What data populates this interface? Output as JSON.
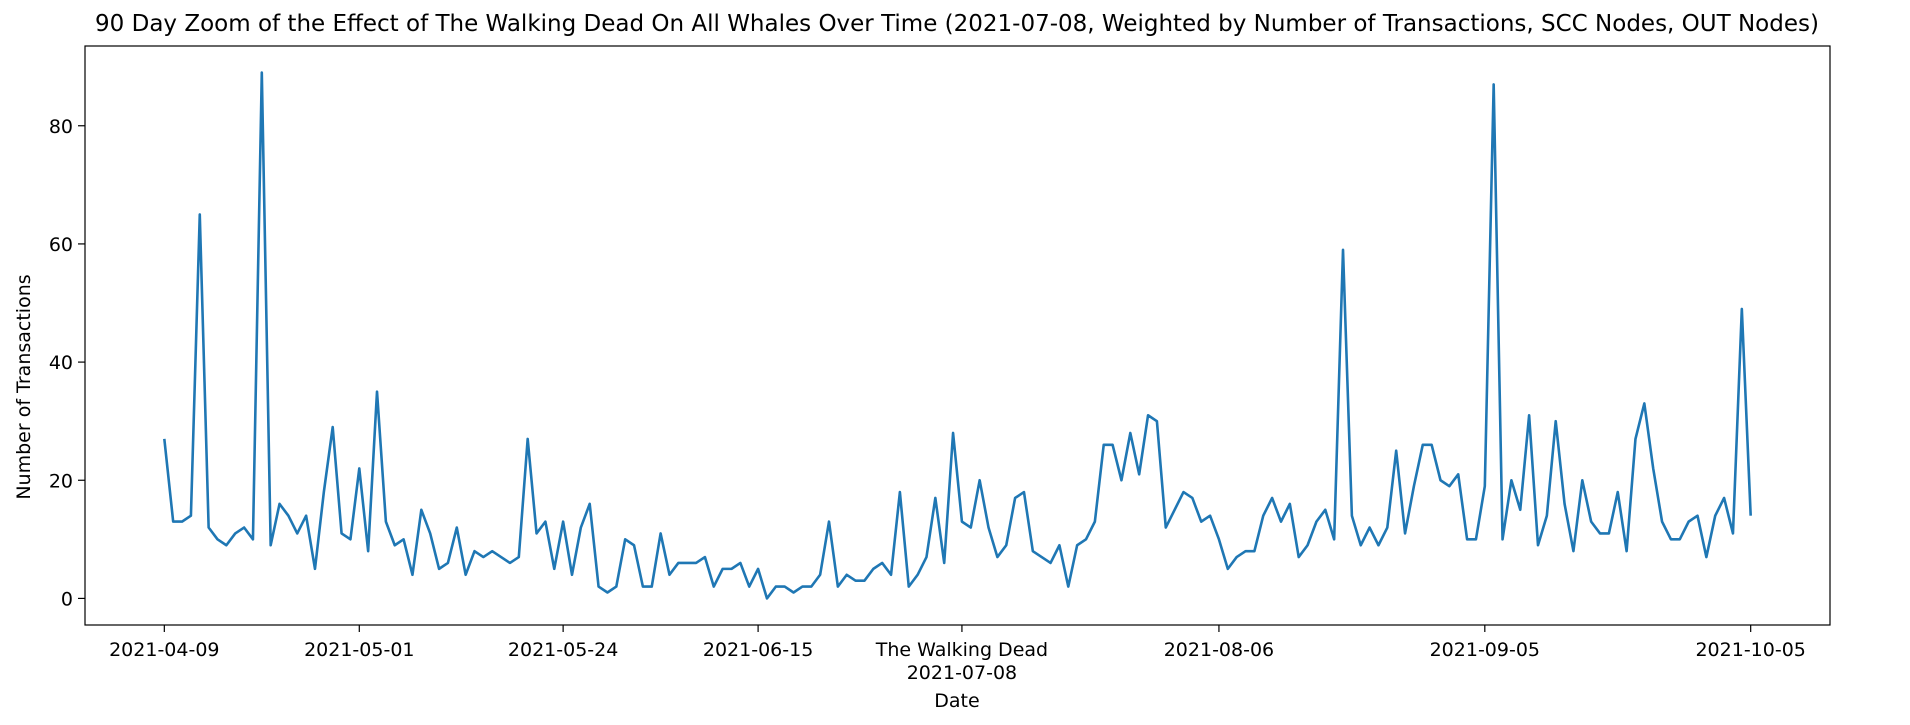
{
  "chart_data": {
    "type": "line",
    "title": "90 Day Zoom of the Effect of The Walking Dead On All Whales Over Time (2021-07-08, Weighted by Number of Transactions, SCC Nodes, OUT Nodes)",
    "xlabel": "Date",
    "ylabel": "Number of Transactions",
    "x_start": "2021-04-09",
    "x_end": "2021-10-05",
    "ylim": [
      -4.5,
      93.5
    ],
    "yticks": [
      0,
      20,
      40,
      60,
      80
    ],
    "xticks": [
      {
        "date": "2021-04-09",
        "label": "2021-04-09"
      },
      {
        "date": "2021-05-01",
        "label": "2021-05-01"
      },
      {
        "date": "2021-05-24",
        "label": "2021-05-24"
      },
      {
        "date": "2021-06-15",
        "label": "2021-06-15"
      },
      {
        "date": "2021-07-08",
        "label": "The Walking Dead",
        "label2": "2021-07-08"
      },
      {
        "date": "2021-08-06",
        "label": "2021-08-06"
      },
      {
        "date": "2021-09-05",
        "label": "2021-09-05"
      },
      {
        "date": "2021-10-05",
        "label": "2021-10-05"
      }
    ],
    "grid": false,
    "line_color": "#1f77b4",
    "series": [
      {
        "values": [
          27,
          13,
          13,
          14,
          65,
          12,
          10,
          9,
          11,
          12,
          10,
          89,
          9,
          16,
          14,
          11,
          14,
          5,
          18,
          29,
          11,
          10,
          22,
          8,
          35,
          13,
          9,
          10,
          4,
          15,
          11,
          5,
          6,
          12,
          4,
          8,
          7,
          8,
          7,
          6,
          7,
          27,
          11,
          13,
          5,
          13,
          4,
          12,
          16,
          2,
          1,
          2,
          10,
          9,
          2,
          2,
          11,
          4,
          6,
          6,
          6,
          7,
          2,
          5,
          5,
          6,
          2,
          5,
          0,
          2,
          2,
          1,
          2,
          2,
          4,
          13,
          2,
          4,
          3,
          3,
          5,
          6,
          4,
          18,
          2,
          4,
          7,
          17,
          6,
          28,
          13,
          12,
          20,
          12,
          7,
          9,
          17,
          18,
          8,
          7,
          6,
          9,
          2,
          9,
          10,
          13,
          26,
          26,
          20,
          28,
          21,
          31,
          30,
          12,
          15,
          18,
          17,
          13,
          14,
          10,
          5,
          7,
          8,
          8,
          14,
          17,
          13,
          16,
          7,
          9,
          13,
          15,
          10,
          59,
          14,
          9,
          12,
          9,
          12,
          25,
          11,
          19,
          26,
          26,
          20,
          19,
          21,
          10,
          10,
          19,
          87,
          10,
          20,
          15,
          31,
          9,
          14,
          30,
          16,
          8,
          20,
          13,
          11,
          11,
          18,
          8,
          27,
          33,
          22,
          13,
          10,
          10,
          13,
          14,
          7,
          14,
          17,
          11,
          49,
          14
        ]
      }
    ]
  }
}
